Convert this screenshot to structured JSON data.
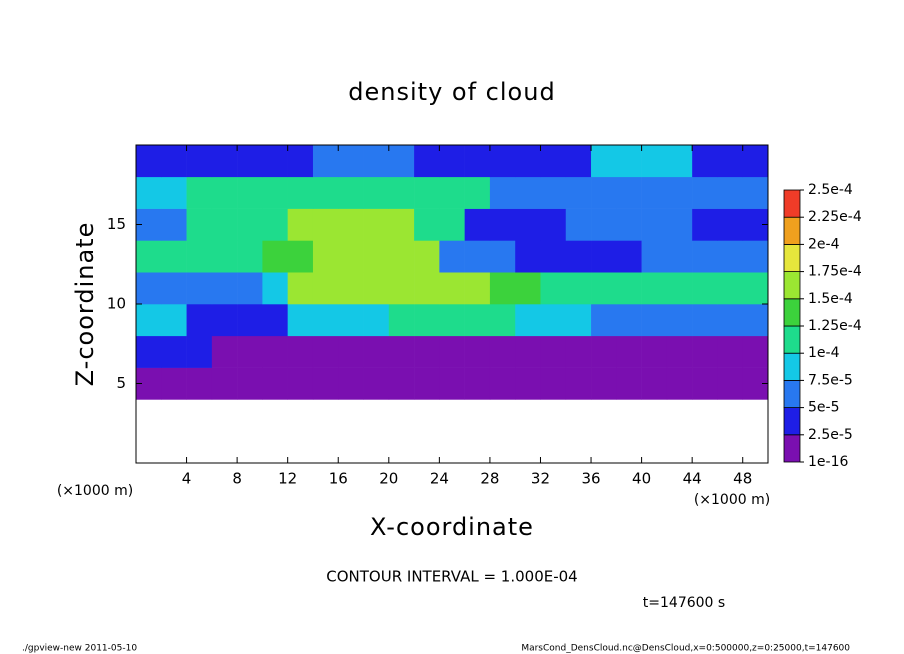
{
  "chart_data": {
    "type": "heatmap",
    "title": "density of cloud",
    "x_label": "X-coordinate",
    "y_label": "Z-coordinate",
    "x_unit": "(×1000 m)",
    "y_unit": "(×1000 m)",
    "note": "CONTOUR INTERVAL = 1.000E-04",
    "time": "t=147600 s",
    "footer_left": "./gpview-new  2011-05-10",
    "footer_right": "MarsCond_DensCloud.nc@DensCloud,x=0:500000,z=0:25000,t=147600",
    "x": [
      0,
      2,
      4,
      6,
      8,
      10,
      12,
      14,
      16,
      18,
      20,
      22,
      24,
      26,
      28,
      30,
      32,
      34,
      36,
      38,
      40,
      42,
      44,
      46,
      48,
      50
    ],
    "y": [
      0,
      2,
      4,
      6,
      8,
      10,
      12,
      14,
      16,
      18,
      20
    ],
    "values": [
      [
        null,
        null,
        null,
        null,
        null,
        null,
        null,
        null,
        null,
        null,
        null,
        null,
        null,
        null,
        null,
        null,
        null,
        null,
        null,
        null,
        null,
        null,
        null,
        null,
        null
      ],
      [
        null,
        null,
        null,
        null,
        null,
        null,
        null,
        null,
        null,
        null,
        null,
        null,
        null,
        null,
        null,
        null,
        null,
        null,
        null,
        null,
        null,
        null,
        null,
        null,
        null
      ],
      [
        1e-05,
        1e-05,
        1e-05,
        1e-05,
        1e-05,
        1e-05,
        1e-05,
        1e-05,
        1e-05,
        1e-05,
        1e-05,
        1e-05,
        1e-05,
        1e-05,
        1e-05,
        1e-05,
        1e-05,
        1e-05,
        1e-05,
        1e-05,
        1e-05,
        1e-05,
        1e-05,
        1e-05,
        1e-05
      ],
      [
        3e-05,
        3e-05,
        3e-05,
        2e-05,
        2e-05,
        2e-05,
        2e-05,
        2e-05,
        2e-05,
        2e-05,
        2e-05,
        2e-05,
        2e-05,
        2e-05,
        2e-05,
        2e-05,
        2e-05,
        2e-05,
        2e-05,
        2e-05,
        2e-05,
        2e-05,
        2e-05,
        2e-05,
        2e-05
      ],
      [
        8e-05,
        8e-05,
        4e-05,
        4e-05,
        4e-05,
        4e-05,
        9e-05,
        9e-05,
        9e-05,
        9e-05,
        0.0001,
        0.0001,
        0.0001,
        0.0001,
        0.0001,
        8e-05,
        8e-05,
        8e-05,
        6e-05,
        6e-05,
        6e-05,
        6e-05,
        6e-05,
        6e-05,
        6e-05
      ],
      [
        6e-05,
        6e-05,
        6e-05,
        6e-05,
        6e-05,
        9e-05,
        0.00015,
        0.00015,
        0.00015,
        0.00015,
        0.00015,
        0.00015,
        0.00015,
        0.00015,
        0.00014,
        0.00014,
        0.00011,
        0.00011,
        0.00011,
        0.00011,
        0.00011,
        0.00011,
        0.00011,
        0.00011,
        0.00011
      ],
      [
        0.0001,
        0.0001,
        0.0001,
        0.0001,
        0.0001,
        0.00013,
        0.00013,
        0.00017,
        0.00017,
        0.00017,
        0.00017,
        0.00017,
        5e-05,
        5e-05,
        5e-05,
        3e-05,
        3e-05,
        3e-05,
        3e-05,
        3e-05,
        6e-05,
        6e-05,
        6e-05,
        6e-05,
        6e-05
      ],
      [
        5e-05,
        5e-05,
        0.00012,
        0.00012,
        0.00012,
        0.00012,
        0.00016,
        0.00016,
        0.00016,
        0.00016,
        0.00016,
        0.00012,
        0.00012,
        3e-05,
        3e-05,
        3e-05,
        3e-05,
        6e-05,
        6e-05,
        6e-05,
        6e-05,
        6e-05,
        3e-05,
        3e-05,
        3e-05
      ],
      [
        8e-05,
        8e-05,
        0.00012,
        0.00012,
        0.00012,
        0.00012,
        0.00012,
        0.00012,
        0.00012,
        0.00012,
        0.0001,
        0.0001,
        0.0001,
        0.0001,
        6e-05,
        6e-05,
        6e-05,
        6e-05,
        6e-05,
        6e-05,
        6e-05,
        6e-05,
        6e-05,
        6e-05,
        6e-05
      ],
      [
        4e-05,
        4e-05,
        4e-05,
        4e-05,
        4e-05,
        4e-05,
        4e-05,
        7e-05,
        7e-05,
        7e-05,
        7e-05,
        3e-05,
        3e-05,
        3e-05,
        3e-05,
        3e-05,
        3e-05,
        3e-05,
        8e-05,
        8e-05,
        8e-05,
        8e-05,
        3e-05,
        3e-05,
        3e-05
      ]
    ],
    "xlim": [
      0,
      50
    ],
    "ylim": [
      0,
      20
    ],
    "xticks": [
      4,
      8,
      12,
      16,
      20,
      24,
      28,
      32,
      36,
      40,
      44,
      48
    ],
    "yticks": [
      5,
      10,
      15
    ],
    "colorbar": {
      "levels": [
        {
          "value": 1e-16,
          "label": "1e-16"
        },
        {
          "value": 2.5e-05,
          "label": "2.5e-5"
        },
        {
          "value": 5e-05,
          "label": "5e-5"
        },
        {
          "value": 7.5e-05,
          "label": "7.5e-5"
        },
        {
          "value": 0.0001,
          "label": "1e-4"
        },
        {
          "value": 0.000125,
          "label": "1.25e-4"
        },
        {
          "value": 0.00015,
          "label": "1.5e-4"
        },
        {
          "value": 0.000175,
          "label": "1.75e-4"
        },
        {
          "value": 0.0002,
          "label": "2e-4"
        },
        {
          "value": 0.000225,
          "label": "2.25e-4"
        },
        {
          "value": 0.00025,
          "label": "2.5e-4"
        }
      ],
      "colors": [
        "#7a0fb0",
        "#1e1ee6",
        "#2878f0",
        "#14c8e6",
        "#1edc8c",
        "#3cd23c",
        "#9be632",
        "#e6e63c",
        "#f0a01e",
        "#f03c28"
      ]
    }
  }
}
